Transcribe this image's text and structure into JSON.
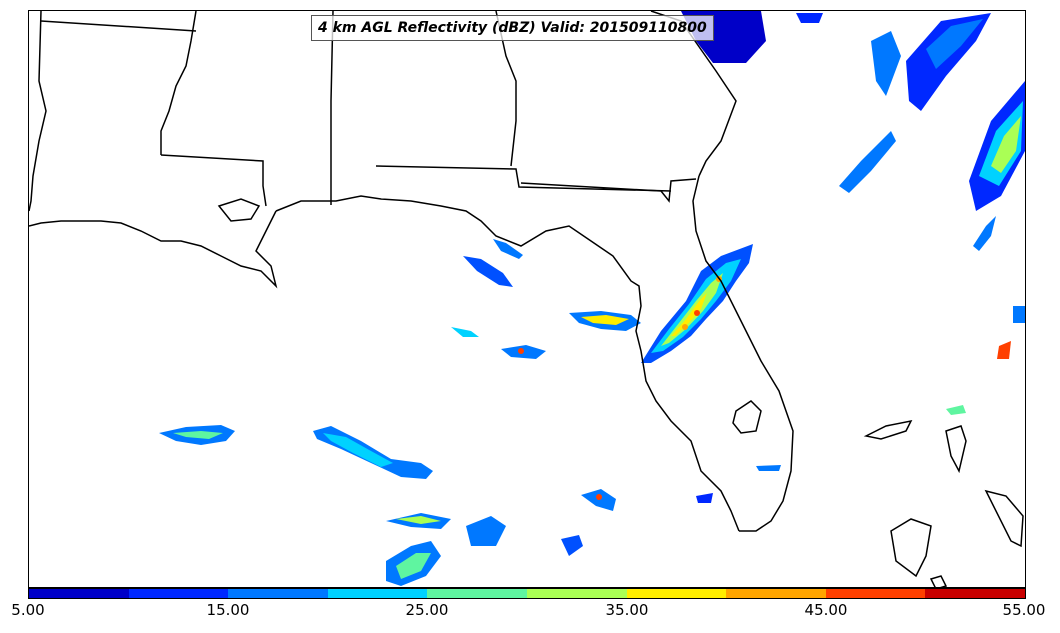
{
  "title": "4 km AGL Reflectivity (dBZ) Valid: 201509110800",
  "colorbar": {
    "ticks": [
      "5.00",
      "15.00",
      "25.00",
      "35.00",
      "45.00",
      "55.00"
    ],
    "colors": [
      "#0000c8",
      "#0028ff",
      "#0078ff",
      "#00d2ff",
      "#5ff5a0",
      "#aaff55",
      "#ffee00",
      "#ffa500",
      "#ff4000",
      "#c80000"
    ]
  }
}
